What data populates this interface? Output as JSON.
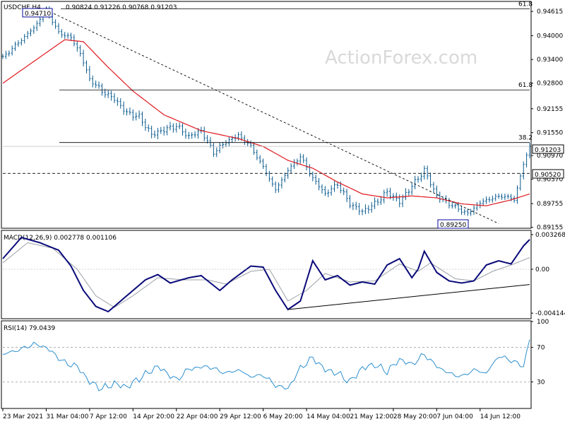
{
  "watermark": "ActionForex.com",
  "colors": {
    "price": "#0b5c8f",
    "ma": "#e0191f",
    "macd": "#0a0a7a",
    "signal": "#9aa0a6",
    "rsi": "#2b8fd1",
    "grid": "#000000",
    "box": "#0a0a9a",
    "text": "#000000"
  },
  "chart_data": [
    {
      "type": "line",
      "title": "USDCHF,H4",
      "ohlc_header": "0.90824 0.91226 0.90768 0.91203",
      "ylim": [
        0.8915,
        0.9485
      ],
      "yticks": [
        "0.94615",
        "0.94000",
        "0.93400",
        "0.92800",
        "0.92155",
        "0.91550",
        "0.90970",
        "0.90370",
        "0.89755",
        "0.89155"
      ],
      "price_box": "0.91203",
      "support_box": "0.90520",
      "high_box": "0.94710",
      "low_box": "0.89250",
      "fib_levels": [
        {
          "label": "61.8",
          "value": 0.9468
        },
        {
          "label": "61.8",
          "value": 0.9263
        },
        {
          "label": "38.2",
          "value": 0.913
        }
      ],
      "support_level": 0.9052,
      "trendline": {
        "from": {
          "i": 14,
          "y": 0.9465
        },
        "to": {
          "i": 160,
          "y": 0.8925
        }
      },
      "x_categories": [
        "23 Mar 2021",
        "31 Mar 04:00",
        "7 Apr 12:00",
        "14 Apr 20:00",
        "22 Apr 04:00",
        "29 Apr 12:00",
        "6 May 20:00",
        "14 May 04:00",
        "21 May 12:00",
        "28 May 20:00",
        "7 Jun 04:00",
        "14 Jun 12:00"
      ],
      "x_category_index": [
        0,
        14,
        28,
        42,
        56,
        70,
        84,
        98,
        112,
        126,
        140,
        154
      ],
      "close_anchors": [
        [
          0,
          0.9345
        ],
        [
          6,
          0.939
        ],
        [
          10,
          0.942
        ],
        [
          14,
          0.9465
        ],
        [
          18,
          0.9408
        ],
        [
          22,
          0.9395
        ],
        [
          25,
          0.9355
        ],
        [
          28,
          0.929
        ],
        [
          32,
          0.926
        ],
        [
          36,
          0.924
        ],
        [
          40,
          0.9205
        ],
        [
          44,
          0.9195
        ],
        [
          48,
          0.915
        ],
        [
          52,
          0.9162
        ],
        [
          56,
          0.9172
        ],
        [
          60,
          0.9145
        ],
        [
          64,
          0.916
        ],
        [
          68,
          0.9105
        ],
        [
          72,
          0.9132
        ],
        [
          76,
          0.9148
        ],
        [
          80,
          0.912
        ],
        [
          84,
          0.9068
        ],
        [
          88,
          0.901
        ],
        [
          92,
          0.906
        ],
        [
          96,
          0.9095
        ],
        [
          100,
          0.904
        ],
        [
          104,
          0.9
        ],
        [
          108,
          0.9025
        ],
        [
          112,
          0.8975
        ],
        [
          116,
          0.8955
        ],
        [
          120,
          0.8975
        ],
        [
          124,
          0.9005
        ],
        [
          128,
          0.898
        ],
        [
          132,
          0.902
        ],
        [
          136,
          0.906
        ],
        [
          140,
          0.8995
        ],
        [
          144,
          0.8975
        ],
        [
          148,
          0.8958
        ],
        [
          150,
          0.895
        ],
        [
          154,
          0.8978
        ],
        [
          158,
          0.899
        ],
        [
          162,
          0.8995
        ],
        [
          165,
          0.8985
        ],
        [
          168,
          0.9075
        ],
        [
          170,
          0.912
        ]
      ],
      "ma_anchors": [
        [
          0,
          0.928
        ],
        [
          10,
          0.9335
        ],
        [
          20,
          0.939
        ],
        [
          26,
          0.9385
        ],
        [
          34,
          0.932
        ],
        [
          42,
          0.926
        ],
        [
          52,
          0.92
        ],
        [
          64,
          0.916
        ],
        [
          76,
          0.914
        ],
        [
          84,
          0.912
        ],
        [
          92,
          0.9085
        ],
        [
          100,
          0.9065
        ],
        [
          108,
          0.903
        ],
        [
          116,
          0.9
        ],
        [
          124,
          0.899
        ],
        [
          132,
          0.8995
        ],
        [
          140,
          0.899
        ],
        [
          148,
          0.8975
        ],
        [
          156,
          0.897
        ],
        [
          164,
          0.8985
        ],
        [
          170,
          0.9
        ]
      ],
      "bars": 171
    },
    {
      "type": "line",
      "title": "MACD(12,26,9) 0.002778 0.001106",
      "ylim": [
        -0.0046,
        0.0036
      ],
      "yticks": [
        "0.003268",
        "0.00",
        "-0.004144"
      ],
      "macd_anchors": [
        [
          0,
          0.001
        ],
        [
          6,
          0.003
        ],
        [
          12,
          0.0025
        ],
        [
          18,
          0.0018
        ],
        [
          22,
          0.0003
        ],
        [
          26,
          -0.002
        ],
        [
          30,
          -0.0035
        ],
        [
          34,
          -0.004
        ],
        [
          40,
          -0.0025
        ],
        [
          46,
          -0.001
        ],
        [
          50,
          -0.0005
        ],
        [
          54,
          -0.0013
        ],
        [
          60,
          -0.0008
        ],
        [
          64,
          -0.0006
        ],
        [
          70,
          -0.002
        ],
        [
          74,
          -0.001
        ],
        [
          80,
          0.0003
        ],
        [
          84,
          0.0002
        ],
        [
          88,
          -0.002
        ],
        [
          92,
          -0.0038
        ],
        [
          96,
          -0.003
        ],
        [
          100,
          0.0008
        ],
        [
          104,
          -0.001
        ],
        [
          108,
          -0.0006
        ],
        [
          112,
          -0.0015
        ],
        [
          116,
          -0.0012
        ],
        [
          120,
          -0.0014
        ],
        [
          124,
          0.0004
        ],
        [
          128,
          0.001
        ],
        [
          132,
          -0.0008
        ],
        [
          134,
          0.0
        ],
        [
          136,
          0.0017
        ],
        [
          140,
          -0.0003
        ],
        [
          144,
          -0.0011
        ],
        [
          148,
          -0.0013
        ],
        [
          152,
          -0.0011
        ],
        [
          156,
          0.0004
        ],
        [
          160,
          0.0008
        ],
        [
          164,
          0.0005
        ],
        [
          168,
          0.0022
        ],
        [
          170,
          0.0028
        ]
      ],
      "signal_anchors": [
        [
          0,
          0.0006
        ],
        [
          8,
          0.0025
        ],
        [
          16,
          0.002
        ],
        [
          24,
          0.0
        ],
        [
          30,
          -0.0025
        ],
        [
          36,
          -0.0036
        ],
        [
          42,
          -0.0025
        ],
        [
          50,
          -0.0008
        ],
        [
          58,
          -0.001
        ],
        [
          66,
          -0.001
        ],
        [
          72,
          -0.0014
        ],
        [
          80,
          -0.0002
        ],
        [
          86,
          0.0
        ],
        [
          92,
          -0.003
        ],
        [
          98,
          -0.002
        ],
        [
          104,
          -0.0004
        ],
        [
          112,
          -0.0012
        ],
        [
          120,
          -0.0011
        ],
        [
          128,
          0.0005
        ],
        [
          134,
          -0.0002
        ],
        [
          138,
          0.0006
        ],
        [
          146,
          -0.0009
        ],
        [
          152,
          -0.0011
        ],
        [
          158,
          -0.0002
        ],
        [
          164,
          0.0004
        ],
        [
          170,
          0.0011
        ]
      ],
      "trendline": {
        "from": {
          "i": 92,
          "y": -0.0038
        },
        "to": {
          "i": 178,
          "y": -0.0012
        }
      }
    },
    {
      "type": "line",
      "title": "RSI(14) 79.0439",
      "ylim": [
        0,
        100
      ],
      "yticks": [
        "100",
        "70",
        "30"
      ],
      "levels": [
        70,
        30
      ],
      "rsi_anchors": [
        [
          0,
          62
        ],
        [
          6,
          68
        ],
        [
          10,
          74
        ],
        [
          14,
          70
        ],
        [
          20,
          52
        ],
        [
          24,
          48
        ],
        [
          28,
          30
        ],
        [
          32,
          22
        ],
        [
          36,
          28
        ],
        [
          40,
          24
        ],
        [
          44,
          34
        ],
        [
          50,
          48
        ],
        [
          56,
          32
        ],
        [
          60,
          45
        ],
        [
          66,
          48
        ],
        [
          72,
          40
        ],
        [
          76,
          44
        ],
        [
          80,
          36
        ],
        [
          84,
          38
        ],
        [
          88,
          26
        ],
        [
          92,
          22
        ],
        [
          96,
          46
        ],
        [
          100,
          58
        ],
        [
          104,
          44
        ],
        [
          108,
          40
        ],
        [
          112,
          30
        ],
        [
          116,
          46
        ],
        [
          120,
          50
        ],
        [
          124,
          42
        ],
        [
          128,
          56
        ],
        [
          132,
          50
        ],
        [
          136,
          62
        ],
        [
          140,
          48
        ],
        [
          144,
          40
        ],
        [
          148,
          36
        ],
        [
          152,
          44
        ],
        [
          156,
          40
        ],
        [
          160,
          60
        ],
        [
          164,
          55
        ],
        [
          168,
          48
        ],
        [
          170,
          79
        ]
      ]
    }
  ]
}
